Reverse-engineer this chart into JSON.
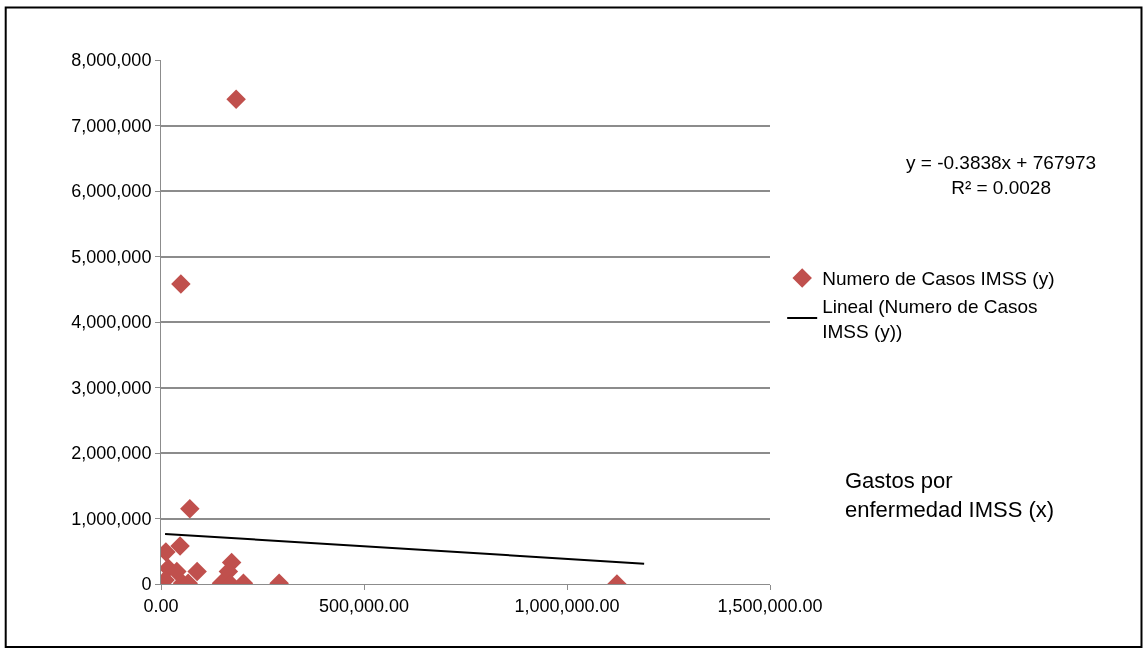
{
  "chart_data": {
    "type": "scatter",
    "xlabel": "Gastos por enfermedad IMSS (x)",
    "annotations": [
      "y = -0.3838x + 767973\nR² = 0.0028"
    ],
    "series": [
      {
        "name": "Numero de Casos IMSS (y)",
        "color": "#c0504d",
        "marker": "diamond",
        "x": [
          185000,
          49000,
          71000,
          47000,
          12000,
          18000,
          39000,
          89000,
          10000,
          53000,
          67000,
          174000,
          166000,
          149000,
          171000,
          203000,
          291000,
          1123000
        ],
        "values": [
          7400000,
          4580000,
          1150000,
          580000,
          490000,
          240000,
          190000,
          190000,
          60000,
          10000,
          10000,
          330000,
          190000,
          10000,
          0,
          10000,
          10000,
          0
        ]
      },
      {
        "name": "Lineal (Numero de Casos IMSS (y))",
        "color": "#000000",
        "type": "line",
        "marker": "none",
        "line_style": "solid",
        "x": [
          10000,
          1190000
        ],
        "values": [
          764000,
          310000
        ]
      }
    ],
    "xlim": [
      0,
      1500000
    ],
    "ylim": [
      0,
      8000000
    ],
    "xticks": [
      {
        "value": 0,
        "label": "0.00"
      },
      {
        "value": 500000,
        "label": "500,000.00"
      },
      {
        "value": 1000000,
        "label": "1,000,000.00"
      },
      {
        "value": 1500000,
        "label": "1,500,000.00"
      }
    ],
    "yticks": [
      0,
      {
        "value": 1000000,
        "label": "1,000,000"
      },
      {
        "value": 2000000,
        "label": "2,000,000"
      },
      {
        "value": 3000000,
        "label": "3,000,000"
      },
      {
        "value": 4000000,
        "label": "4,000,000"
      },
      {
        "value": 5000000,
        "label": "5,000,000"
      },
      {
        "value": 6000000,
        "label": "6,000,000"
      },
      {
        "value": 7000000,
        "label": "7,000,000"
      },
      {
        "value": 8000000,
        "label": "8,000,000"
      }
    ],
    "grid": "y",
    "legend": "right"
  }
}
